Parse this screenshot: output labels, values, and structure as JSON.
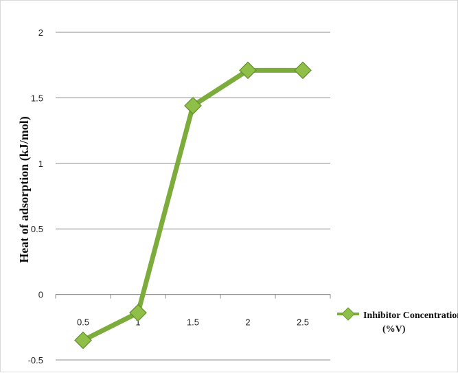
{
  "chart_data": {
    "type": "line",
    "x": [
      0.5,
      1,
      1.5,
      2,
      2.5
    ],
    "xtick_labels": [
      "0.5",
      "1",
      "1.5",
      "2",
      "2.5"
    ],
    "series": [
      {
        "name": "Inhibitor Concentration (%V)",
        "values": [
          -0.35,
          -0.14,
          1.44,
          1.71,
          1.71
        ],
        "color": "#7cac3b",
        "marker_color": "#8fbe49"
      }
    ],
    "ylabel": "Heat of adsorption (kJ/mol)",
    "ylim": [
      -0.5,
      2
    ],
    "yticks": [
      2,
      1.5,
      1,
      0.5,
      0,
      -0.5
    ],
    "ytick_labels": [
      "2",
      "1.5",
      "1",
      "0.5",
      "0",
      "-0.5"
    ],
    "grid": true,
    "legend": {
      "position": "right",
      "line1": "Inhibitor Concentration",
      "line2": "(%V)"
    }
  }
}
